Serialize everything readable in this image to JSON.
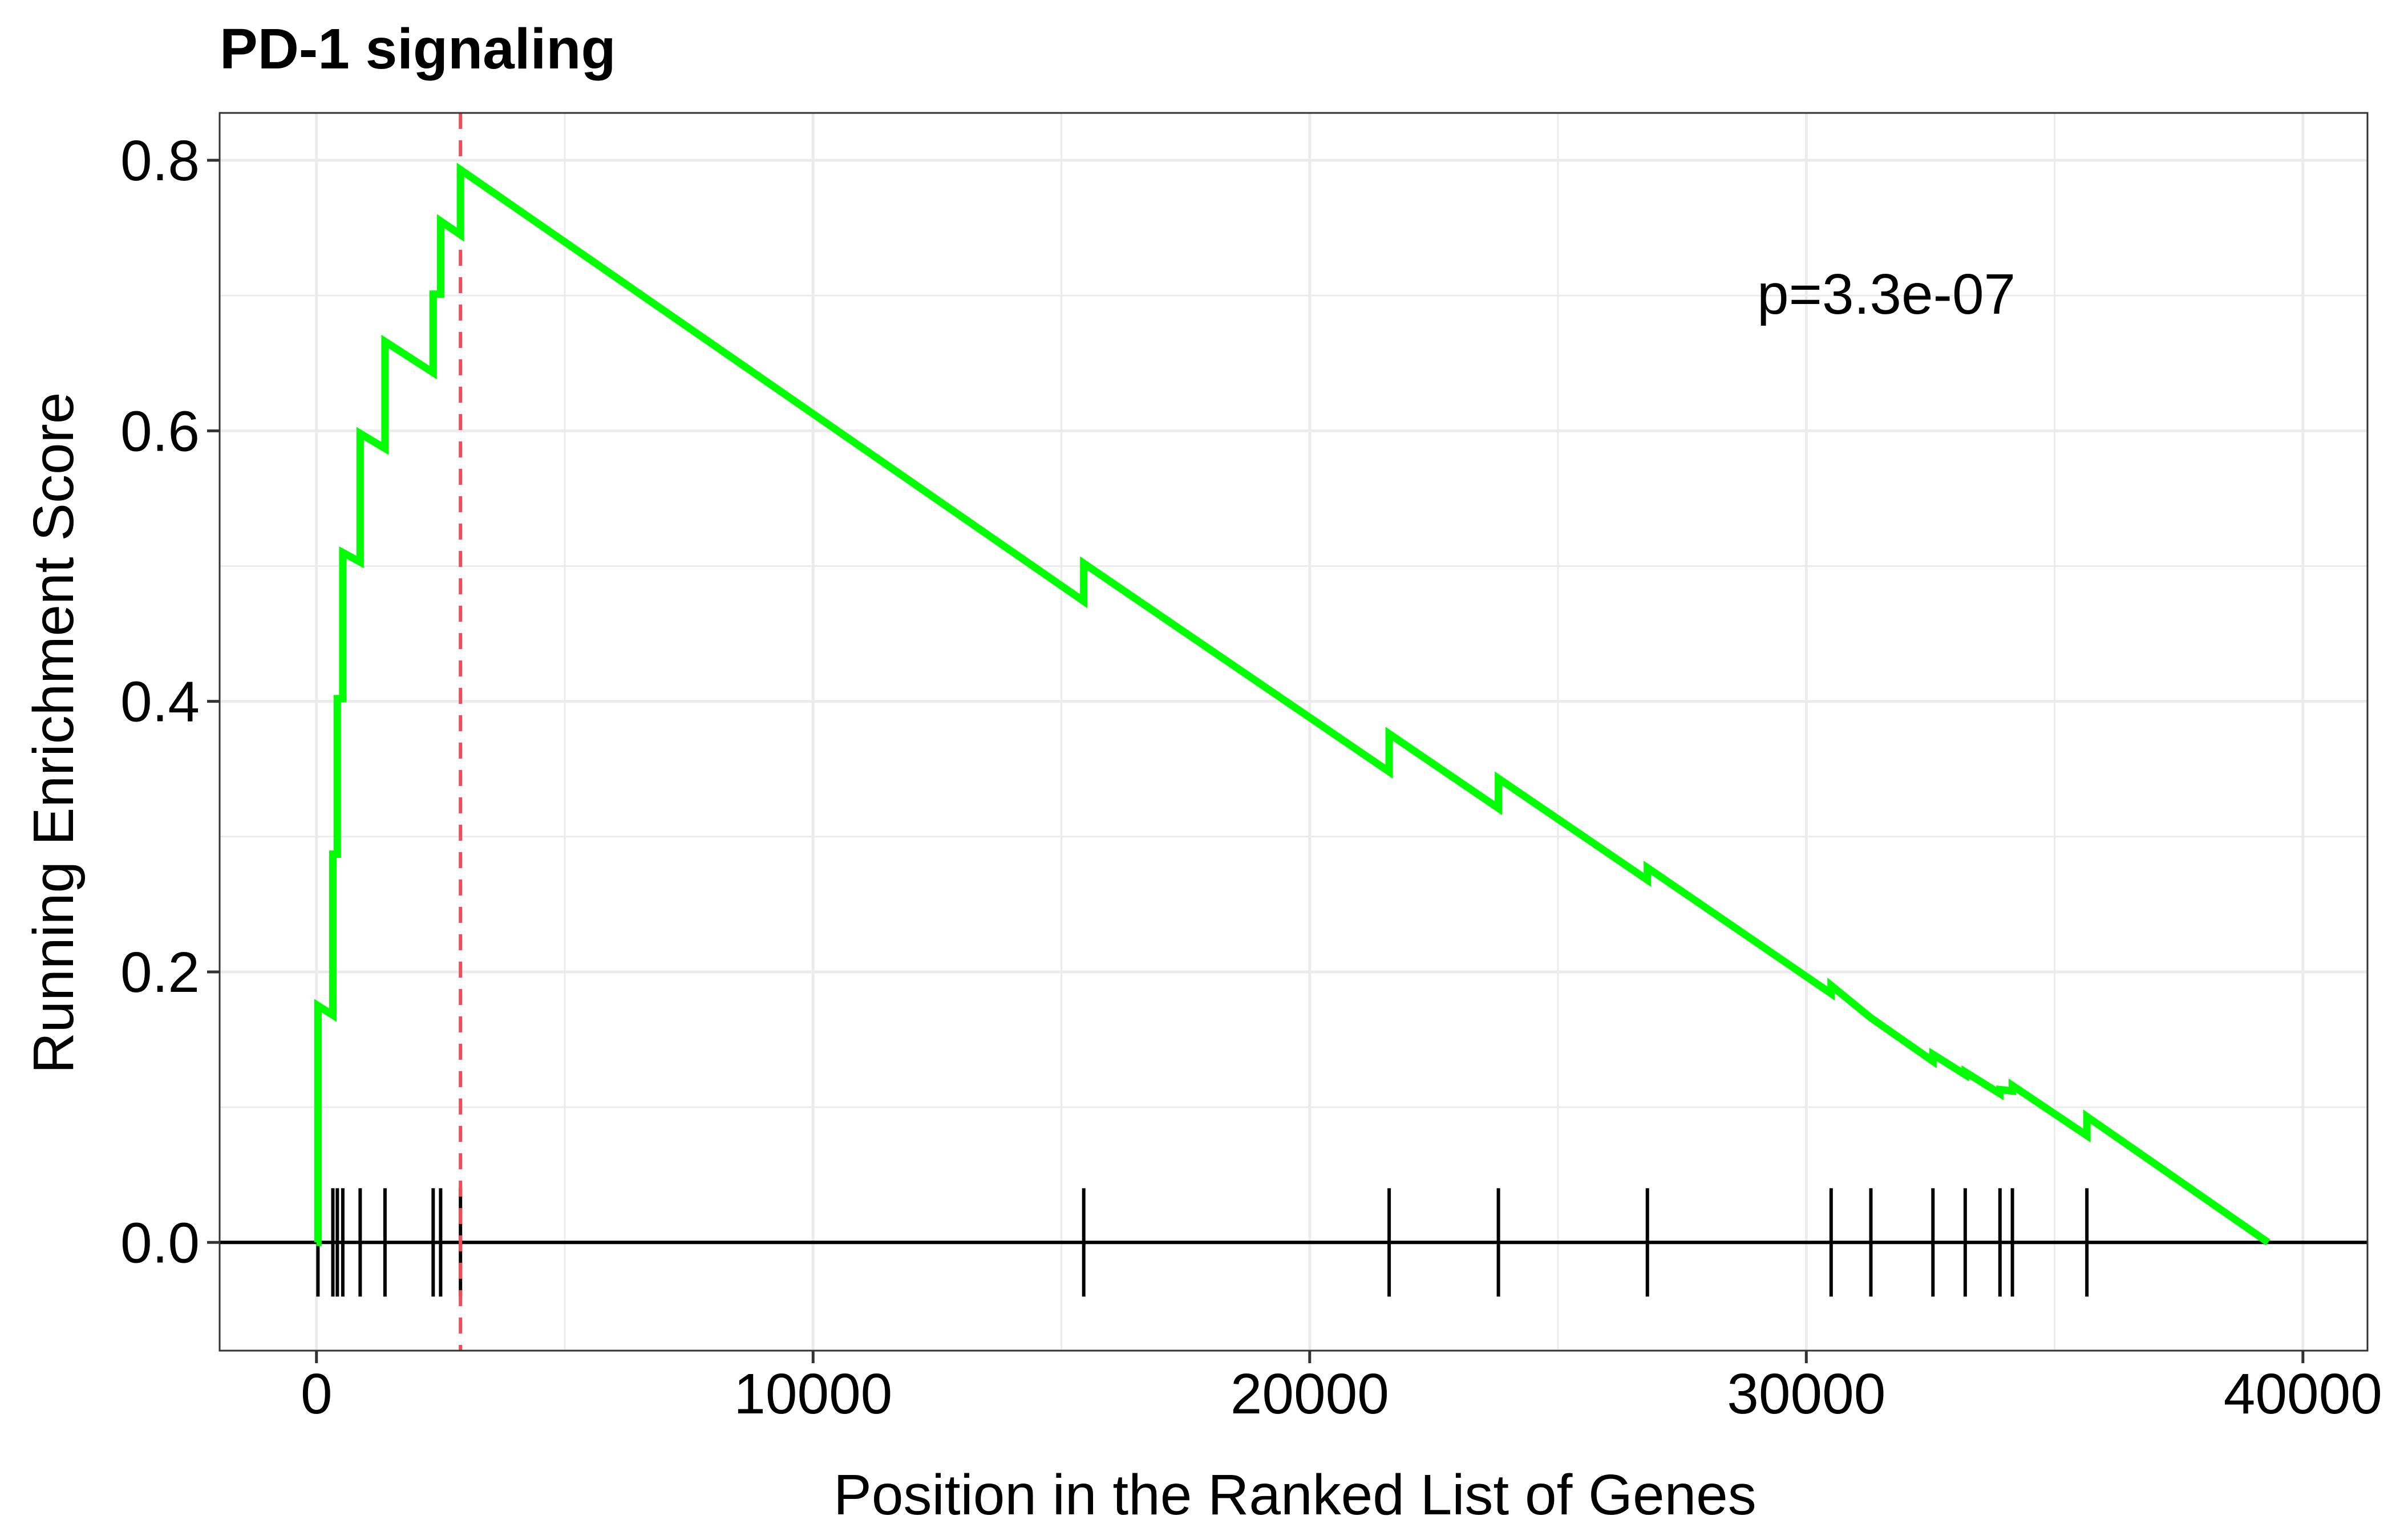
{
  "chart_data": {
    "type": "line",
    "title": "PD-1 signaling",
    "xlabel": "Position in the Ranked List of Genes",
    "ylabel": "Running Enrichment Score",
    "xlim": [
      -1950,
      41300
    ],
    "ylim": [
      -0.08,
      0.835
    ],
    "x_ticks": [
      0,
      10000,
      20000,
      30000,
      40000
    ],
    "x_tick_labels": [
      "0",
      "10000",
      "20000",
      "30000",
      "40000"
    ],
    "y_ticks": [
      0.0,
      0.2,
      0.4,
      0.6,
      0.8
    ],
    "y_tick_labels": [
      "0.0",
      "0.2",
      "0.4",
      "0.6",
      "0.8"
    ],
    "grid": true,
    "annotation": "p=3.3e-07",
    "peak_position": 2900,
    "colors": {
      "line": "#00ff00",
      "peak_line": "#e8505a",
      "ticks": "#000000",
      "grid": "#ebebeb"
    },
    "hit_positions": [
      30,
      330,
      420,
      530,
      880,
      1380,
      2350,
      2500,
      2900,
      15450,
      21600,
      23800,
      26800,
      30500,
      31300,
      32550,
      33200,
      33900,
      34150,
      35650
    ],
    "series": [
      {
        "x": [
          0,
          30,
          30,
          330,
          330,
          420,
          420,
          530,
          530,
          880,
          880,
          1380,
          1380,
          2350,
          2350,
          2500,
          2500,
          2900,
          2900,
          15450,
          15450,
          21600,
          21600,
          23800,
          23800,
          26800,
          26800,
          30500,
          30500,
          31300,
          31300,
          32550,
          32550,
          33200,
          33200,
          33900,
          33900,
          34150,
          34150,
          35650,
          35650,
          39300
        ],
        "y": [
          0.0,
          0.0,
          0.175,
          0.168,
          0.287,
          0.287,
          0.402,
          0.402,
          0.51,
          0.503,
          0.598,
          0.587,
          0.666,
          0.643,
          0.701,
          0.701,
          0.755,
          0.745,
          0.793,
          0.474,
          0.502,
          0.348,
          0.376,
          0.321,
          0.343,
          0.268,
          0.277,
          0.184,
          0.19,
          0.166,
          0.166,
          0.134,
          0.139,
          0.124,
          0.126,
          0.11,
          0.113,
          0.112,
          0.116,
          0.079,
          0.093,
          0.0
        ]
      }
    ]
  }
}
